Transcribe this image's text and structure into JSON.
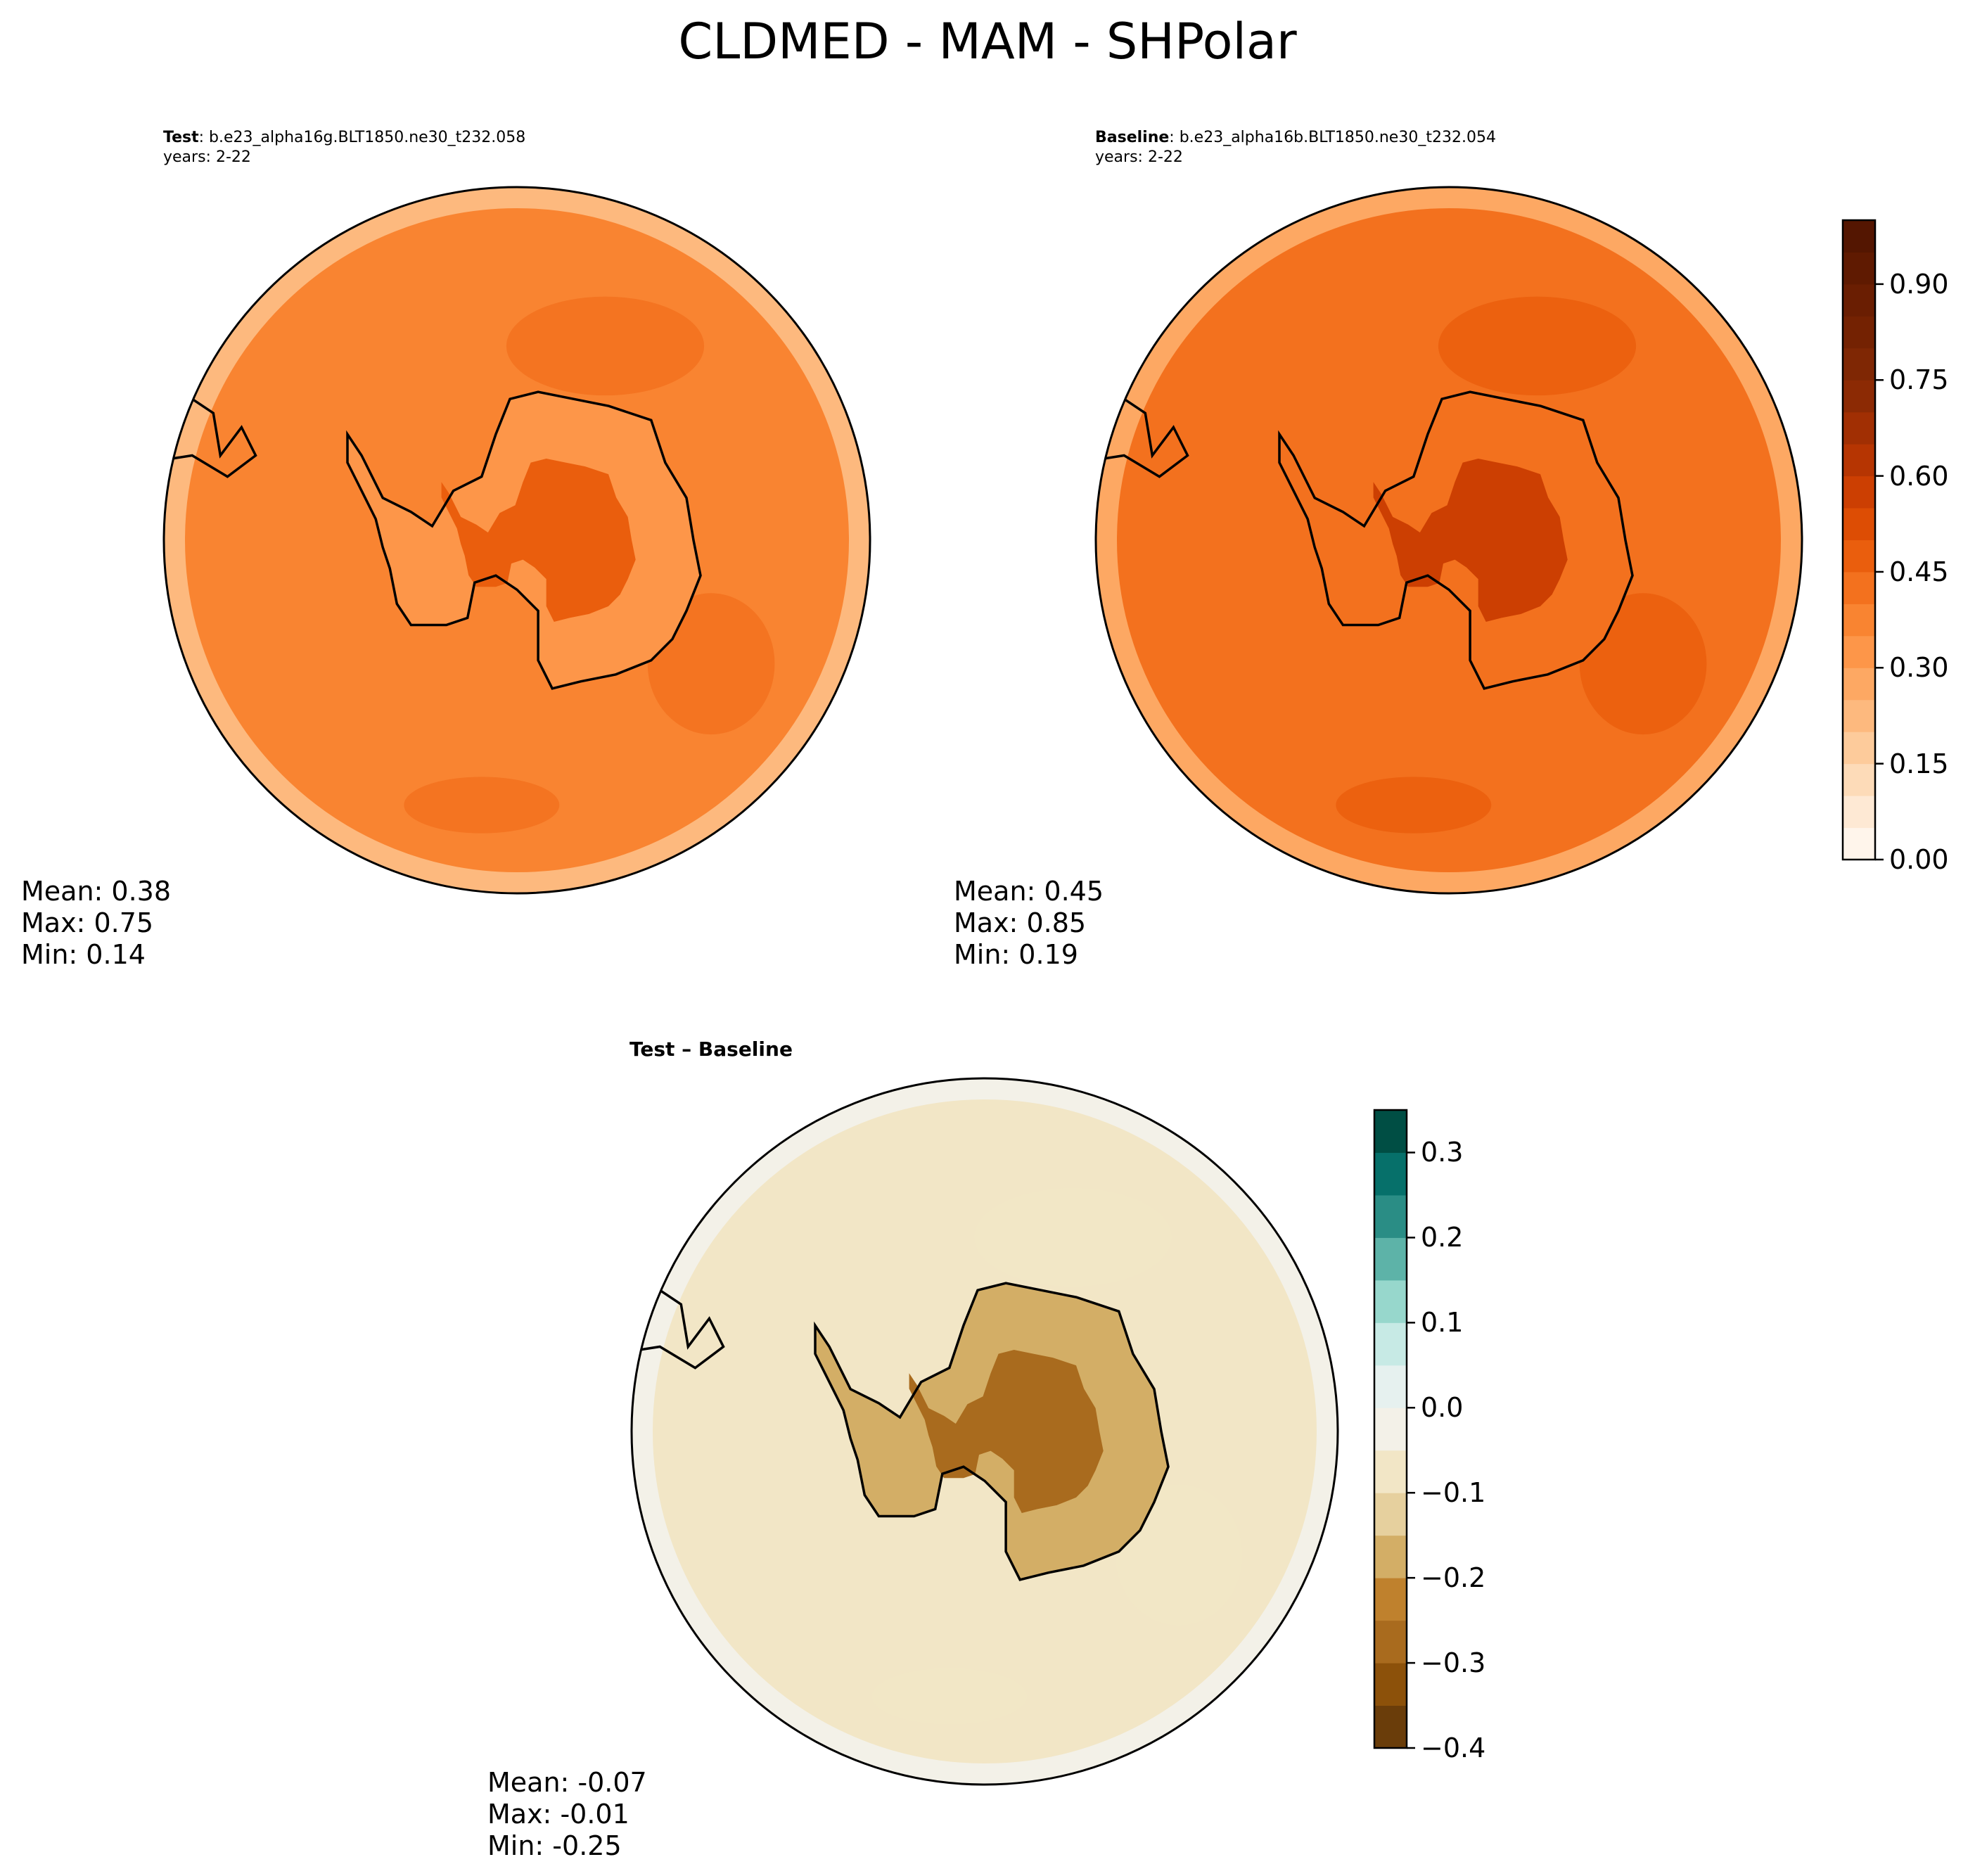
{
  "chart_data": {
    "type": "polar-contour-map",
    "title": "CLDMED - MAM - SHPolar",
    "projection": "South Polar Stereographic",
    "panels": [
      {
        "id": "test",
        "label": "Test",
        "case": ": b.e23_alpha16g.BLT1850.ne30_t232.058",
        "years": "years: 2-22",
        "stats": {
          "mean": "Mean:  0.38",
          "max": "Max:  0.75",
          "min": "Min:  0.14"
        },
        "ocean_level": 0.35,
        "ice_level": 0.3,
        "colormap": "Oranges"
      },
      {
        "id": "baseline",
        "label": "Baseline",
        "case": ": b.e23_alpha16b.BLT1850.ne30_t232.054",
        "years": "years: 2-22",
        "stats": {
          "mean": "Mean:  0.45",
          "max": "Max:  0.85",
          "min": "Min:  0.19"
        },
        "ocean_level": 0.42,
        "ice_level": 0.4,
        "colormap": "Oranges"
      },
      {
        "id": "diff",
        "label": "Test – Baseline",
        "stats": {
          "mean": "Mean: -0.07",
          "max": "Max: -0.01",
          "min": "Min: -0.25"
        },
        "ocean_level": -0.06,
        "ice_level": -0.2,
        "colormap": "BrBG"
      }
    ],
    "colorbar_main": {
      "range": [
        0.0,
        1.0
      ],
      "levels": 20,
      "ticks": [
        0.0,
        0.15,
        0.3,
        0.45,
        0.6,
        0.75,
        0.9
      ],
      "tick_labels": [
        "0.00",
        "0.15",
        "0.30",
        "0.45",
        "0.60",
        "0.75",
        "0.90"
      ],
      "colors": [
        "#fff5eb",
        "#fee9d4",
        "#fddbb8",
        "#fdcb9b",
        "#fdb97e",
        "#fda863",
        "#fd9649",
        "#f98431",
        "#f3711e",
        "#ea5e0d",
        "#dd4d04",
        "#cc3f02",
        "#b63502",
        "#a12f03",
        "#8c2a04",
        "#7f2704",
        "#742202",
        "#6a1e02",
        "#5f1a01",
        "#541601"
      ]
    },
    "colorbar_diff": {
      "range": [
        -0.4,
        0.35
      ],
      "levels": 15,
      "ticks": [
        -0.4,
        -0.3,
        -0.2,
        -0.1,
        0.0,
        0.1,
        0.2,
        0.3
      ],
      "tick_labels": [
        "−0.4",
        "−0.3",
        "−0.2",
        "−0.1",
        "0.0",
        "0.1",
        "0.2",
        "0.3"
      ],
      "colors": [
        "#6a3d0a",
        "#8c510a",
        "#a96b1e",
        "#bf812d",
        "#d3ae66",
        "#e6d09e",
        "#f2e6c6",
        "#f3f1e8",
        "#e6f1ef",
        "#c7eae5",
        "#97d7cc",
        "#5db3a8",
        "#2a8d85",
        "#06706a",
        "#004e44"
      ]
    }
  }
}
